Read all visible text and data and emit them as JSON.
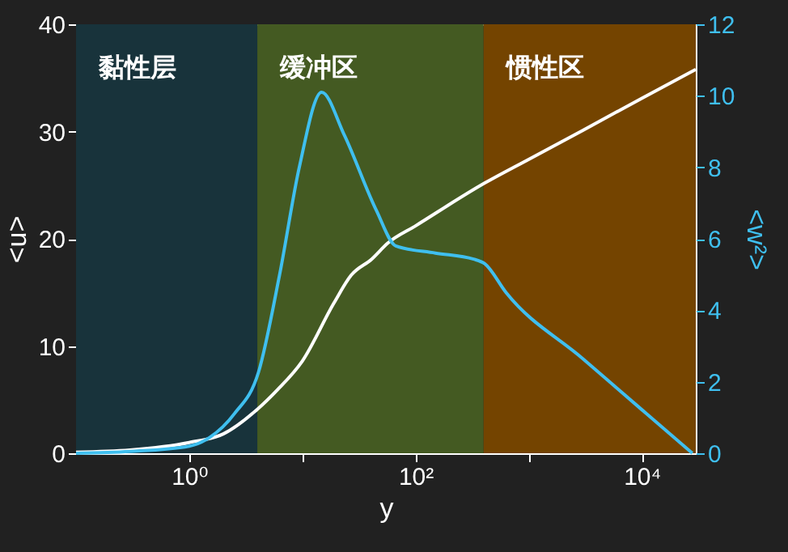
{
  "chart_data": {
    "type": "line",
    "xlabel": "y",
    "ylabel": "<u>",
    "y2label": "<w²>",
    "log": "x",
    "xlim": [
      0.1,
      30000
    ],
    "xticks": [
      {
        "value": 1,
        "label": "10⁰"
      },
      {
        "value": 10,
        "label": null
      },
      {
        "value": 100,
        "label": "10²"
      },
      {
        "value": 1000,
        "label": null
      },
      {
        "value": 10000,
        "label": "10⁴"
      }
    ],
    "ylim": [
      0,
      40
    ],
    "yticks": [
      0,
      10,
      20,
      30,
      40
    ],
    "y2lim": [
      0,
      12
    ],
    "y2ticks": [
      0,
      2,
      4,
      6,
      8,
      10,
      12
    ],
    "bands": [
      {
        "axis": "x",
        "from": 0.1,
        "to": 4,
        "label": "黏性层",
        "color": "#18333b"
      },
      {
        "axis": "x",
        "from": 4,
        "to": 400,
        "label": "缓冲区",
        "color": "#445a22"
      },
      {
        "axis": "x",
        "from": 400,
        "to": 30000,
        "label": "惯性区",
        "color": "#744400"
      }
    ],
    "series": [
      {
        "color": "#ffffff",
        "x": [
          0.1,
          0.3,
          1,
          2,
          4,
          6,
          10,
          19,
          27,
          41,
          57,
          100,
          410,
          1000,
          3000,
          10000,
          30000
        ],
        "values": [
          0.1,
          0.3,
          1.0,
          1.8,
          4.1,
          5.9,
          8.6,
          14,
          16.6,
          18.1,
          19.6,
          21.2,
          25.2,
          27.4,
          30.1,
          33.1,
          35.8
        ]
      },
      {
        "color": "#3fbfef",
        "axis": "y2",
        "x": [
          0.1,
          0.3,
          1,
          1.53,
          2.5,
          4.1,
          6.3,
          9.4,
          14.8,
          23.5,
          45,
          67,
          150,
          326,
          410,
          630,
          3000,
          10000,
          28000
        ],
        "values": [
          0,
          0.05,
          0.2,
          0.45,
          1.1,
          2.27,
          5.0,
          8.0,
          10.1,
          8.9,
          6.8,
          5.8,
          5.6,
          5.43,
          5.3,
          4.5,
          2.65,
          1.22,
          0
        ]
      }
    ],
    "grid": false,
    "marker": "none",
    "line_style": "solid"
  }
}
